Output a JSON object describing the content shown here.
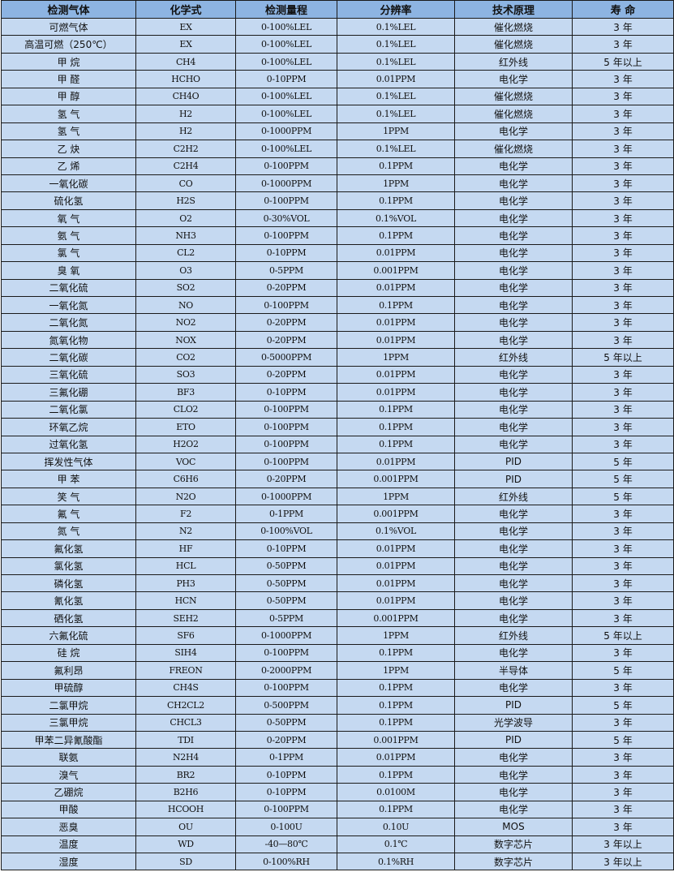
{
  "headers": [
    "检测气体",
    "化学式",
    "检测量程",
    "分辨率",
    "技术原理",
    "寿 命"
  ],
  "rows": [
    [
      "可燃气体",
      "EX",
      "0-100%LEL",
      "0.1%LEL",
      "催化燃烧",
      "3 年"
    ],
    [
      "高温可燃（250℃）",
      "EX",
      "0-100%LEL",
      "0.1%LEL",
      "催化燃烧",
      "3 年"
    ],
    [
      "甲 烷",
      "CH4",
      "0-100%LEL",
      "0.1%LEL",
      "红外线",
      "5 年以上"
    ],
    [
      "甲 醛",
      "HCHO",
      "0-10PPM",
      "0.01PPM",
      "电化学",
      "3 年"
    ],
    [
      "甲 醇",
      "CH4O",
      "0-100%LEL",
      "0.1%LEL",
      "催化燃烧",
      "3 年"
    ],
    [
      "氢 气",
      "H2",
      "0-100%LEL",
      "0.1%LEL",
      "催化燃烧",
      "3 年"
    ],
    [
      "氢 气",
      "H2",
      "0-1000PPM",
      "1PPM",
      "电化学",
      "3 年"
    ],
    [
      "乙 炔",
      "C2H2",
      "0-100%LEL",
      "0.1%LEL",
      "催化燃烧",
      "3 年"
    ],
    [
      "乙 烯",
      "C2H4",
      "0-100PPM",
      "0.1PPM",
      "电化学",
      "3 年"
    ],
    [
      "一氧化碳",
      "CO",
      "0-1000PPM",
      "1PPM",
      "电化学",
      "3 年"
    ],
    [
      "硫化氢",
      "H2S",
      "0-100PPM",
      "0.1PPM",
      "电化学",
      "3 年"
    ],
    [
      "氧 气",
      "O2",
      "0-30%VOL",
      "0.1%VOL",
      "电化学",
      "3 年"
    ],
    [
      "氨 气",
      "NH3",
      "0-100PPM",
      "0.1PPM",
      "电化学",
      "3 年"
    ],
    [
      "氯 气",
      "CL2",
      "0-10PPM",
      "0.01PPM",
      "电化学",
      "3 年"
    ],
    [
      "臭 氧",
      "O3",
      "0-5PPM",
      "0.001PPM",
      "电化学",
      "3 年"
    ],
    [
      "二氧化硫",
      "SO2",
      "0-20PPM",
      "0.01PPM",
      "电化学",
      "3 年"
    ],
    [
      "一氧化氮",
      "NO",
      "0-100PPM",
      "0.1PPM",
      "电化学",
      "3 年"
    ],
    [
      "二氧化氮",
      "NO2",
      "0-20PPM",
      "0.01PPM",
      "电化学",
      "3 年"
    ],
    [
      "氮氧化物",
      "NOX",
      "0-20PPM",
      "0.01PPM",
      "电化学",
      "3 年"
    ],
    [
      "二氧化碳",
      "CO2",
      "0-5000PPM",
      "1PPM",
      "红外线",
      "5 年以上"
    ],
    [
      "三氧化硫",
      "SO3",
      "0-20PPM",
      "0.01PPM",
      "电化学",
      "3 年"
    ],
    [
      "三氟化硼",
      "BF3",
      "0-10PPM",
      "0.01PPM",
      "电化学",
      "3 年"
    ],
    [
      "二氧化氯",
      "CLO2",
      "0-100PPM",
      "0.1PPM",
      "电化学",
      "3 年"
    ],
    [
      "环氧乙烷",
      "ETO",
      "0-100PPM",
      "0.1PPM",
      "电化学",
      "3 年"
    ],
    [
      "过氧化氢",
      "H2O2",
      "0-100PPM",
      "0.1PPM",
      "电化学",
      "3 年"
    ],
    [
      "挥发性气体",
      "VOC",
      "0-100PPM",
      "0.01PPM",
      "PID",
      "5 年"
    ],
    [
      "甲 苯",
      "C6H6",
      "0-20PPM",
      "0.001PPM",
      "PID",
      "5 年"
    ],
    [
      "笑 气",
      "N2O",
      "0-1000PPM",
      "1PPM",
      "红外线",
      "5 年"
    ],
    [
      "氟 气",
      "F2",
      "0-1PPM",
      "0.001PPM",
      "电化学",
      "3 年"
    ],
    [
      "氮 气",
      "N2",
      "0-100%VOL",
      "0.1%VOL",
      "电化学",
      "3 年"
    ],
    [
      "氟化氢",
      "HF",
      "0-10PPM",
      "0.01PPM",
      "电化学",
      "3 年"
    ],
    [
      "氯化氢",
      "HCL",
      "0-50PPM",
      "0.01PPM",
      "电化学",
      "3 年"
    ],
    [
      "磷化氢",
      "PH3",
      "0-50PPM",
      "0.01PPM",
      "电化学",
      "3 年"
    ],
    [
      "氰化氢",
      "HCN",
      "0-50PPM",
      "0.01PPM",
      "电化学",
      "3 年"
    ],
    [
      "硒化氢",
      "SEH2",
      "0-5PPM",
      "0.001PPM",
      "电化学",
      "3 年"
    ],
    [
      "六氟化硫",
      "SF6",
      "0-1000PPM",
      "1PPM",
      "红外线",
      "5 年以上"
    ],
    [
      "硅 烷",
      "SIH4",
      "0-100PPM",
      "0.1PPM",
      "电化学",
      "3 年"
    ],
    [
      "氟利昂",
      "FREON",
      "0-2000PPM",
      "1PPM",
      "半导体",
      "5 年"
    ],
    [
      "甲硫醇",
      "CH4S",
      "0-100PPM",
      "0.1PPM",
      "电化学",
      "3 年"
    ],
    [
      "二氯甲烷",
      "CH2CL2",
      "0-500PPM",
      "0.1PPM",
      "PID",
      "5 年"
    ],
    [
      "三氯甲烷",
      "CHCL3",
      "0-50PPM",
      "0.1PPM",
      "光学波导",
      "3 年"
    ],
    [
      "甲苯二异氰酸酯",
      "TDI",
      "0-20PPM",
      "0.001PPM",
      "PID",
      "5 年"
    ],
    [
      "联氨",
      "N2H4",
      "0-1PPM",
      "0.01PPM",
      "电化学",
      "3 年"
    ],
    [
      "溴气",
      "BR2",
      "0-10PPM",
      "0.1PPM",
      "电化学",
      "3 年"
    ],
    [
      "乙硼烷",
      "B2H6",
      "0-10PPM",
      "0.0100M",
      "电化学",
      "3 年"
    ],
    [
      "甲酸",
      "HCOOH",
      "0-100PPM",
      "0.1PPM",
      "电化学",
      "3 年"
    ],
    [
      "恶臭",
      "OU",
      "0-100U",
      "0.10U",
      "MOS",
      "3 年"
    ],
    [
      "温度",
      "WD",
      "-40—80℃",
      "0.1℃",
      "数字芯片",
      "3 年以上"
    ],
    [
      "湿度",
      "SD",
      "0-100%RH",
      "0.1%RH",
      "数字芯片",
      "3 年以上"
    ]
  ],
  "colors": {
    "header_bg": "#8db4e2",
    "row_bg": "#c5d9f1",
    "border": "#1a1a1a"
  }
}
